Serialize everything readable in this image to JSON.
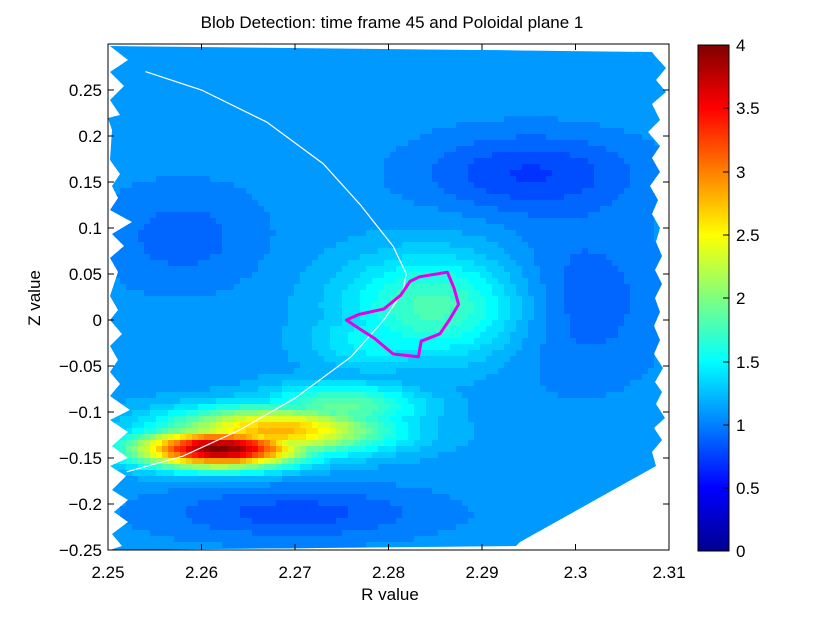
{
  "chart_data": {
    "type": "heatmap",
    "title": "Blob Detection: time frame 45 and Poloidal plane 1",
    "xlabel": "R value",
    "ylabel": "Z value",
    "xlim": [
      2.25,
      2.31
    ],
    "ylim": [
      -0.25,
      0.3
    ],
    "xticks": [
      2.25,
      2.26,
      2.27,
      2.28,
      2.29,
      2.3,
      2.31
    ],
    "xtick_labels": [
      "2.25",
      "2.26",
      "2.27",
      "2.28",
      "2.29",
      "2.3",
      "2.31"
    ],
    "yticks": [
      -0.25,
      -0.2,
      -0.15,
      -0.1,
      -0.05,
      0,
      0.05,
      0.1,
      0.15,
      0.2,
      0.25
    ],
    "ytick_labels": [
      "−0.25",
      "−0.2",
      "−0.15",
      "−0.1",
      "−0.05",
      "0",
      "0.05",
      "0.1",
      "0.15",
      "0.2",
      "0.25"
    ],
    "colorbar": {
      "limits": [
        0,
        4
      ],
      "ticks": [
        0,
        0.5,
        1,
        1.5,
        2,
        2.5,
        3,
        3.5,
        4
      ],
      "tick_labels": [
        "0",
        "0.5",
        "1",
        "1.5",
        "2",
        "2.5",
        "3",
        "3.5",
        "4"
      ],
      "colormap": "jet"
    },
    "features": [
      {
        "kind": "peak",
        "r": 2.262,
        "z": -0.14,
        "value": 4.0,
        "sr": 0.006,
        "sz": 0.014
      },
      {
        "kind": "peak",
        "r": 2.268,
        "z": -0.12,
        "value": 2.8,
        "sr": 0.008,
        "sz": 0.018
      },
      {
        "kind": "peak",
        "r": 2.275,
        "z": -0.095,
        "value": 1.9,
        "sr": 0.006,
        "sz": 0.018
      },
      {
        "kind": "peak",
        "r": 2.285,
        "z": 0.015,
        "value": 1.8,
        "sr": 0.007,
        "sz": 0.04
      },
      {
        "kind": "peak",
        "r": 2.279,
        "z": -0.02,
        "value": 1.55,
        "sr": 0.005,
        "sz": 0.025
      },
      {
        "kind": "trough",
        "r": 2.295,
        "z": 0.16,
        "value": 0.75,
        "sr": 0.008,
        "sz": 0.03
      },
      {
        "kind": "trough",
        "r": 2.3,
        "z": 0.02,
        "value": 0.85,
        "sr": 0.006,
        "sz": 0.06
      },
      {
        "kind": "trough",
        "r": 2.27,
        "z": -0.21,
        "value": 0.8,
        "sr": 0.01,
        "sz": 0.02
      },
      {
        "kind": "trough",
        "r": 2.258,
        "z": 0.09,
        "value": 0.9,
        "sr": 0.006,
        "sz": 0.04
      }
    ],
    "background_value": 1.1,
    "separatrix_curve": [
      [
        2.254,
        0.27
      ],
      [
        2.26,
        0.25
      ],
      [
        2.267,
        0.215
      ],
      [
        2.273,
        0.17
      ],
      [
        2.277,
        0.125
      ],
      [
        2.2805,
        0.08
      ],
      [
        2.2819,
        0.05
      ],
      [
        2.2815,
        0.03
      ],
      [
        2.2795,
        0.0
      ],
      [
        2.276,
        -0.04
      ],
      [
        2.27,
        -0.085
      ],
      [
        2.264,
        -0.12
      ],
      [
        2.258,
        -0.148
      ],
      [
        2.252,
        -0.165
      ]
    ],
    "detected_blob_contour": [
      [
        2.2833,
        0.047
      ],
      [
        2.2863,
        0.052
      ],
      [
        2.287,
        0.035
      ],
      [
        2.2875,
        0.017
      ],
      [
        2.2865,
        0.0
      ],
      [
        2.2855,
        -0.015
      ],
      [
        2.2835,
        -0.023
      ],
      [
        2.2832,
        -0.04
      ],
      [
        2.2805,
        -0.037
      ],
      [
        2.2785,
        -0.02
      ],
      [
        2.2765,
        -0.007
      ],
      [
        2.2755,
        0.0
      ],
      [
        2.2768,
        0.006
      ],
      [
        2.2795,
        0.012
      ],
      [
        2.2813,
        0.027
      ],
      [
        2.2823,
        0.042
      ],
      [
        2.2833,
        0.047
      ]
    ],
    "grid": false
  }
}
